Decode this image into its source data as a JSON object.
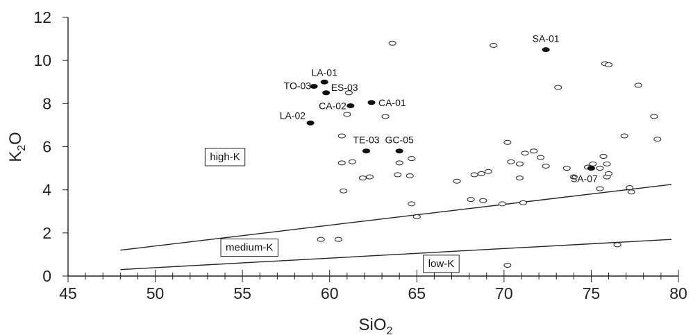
{
  "chart_data": {
    "type": "scatter",
    "xlabel": {
      "main": "SiO",
      "sub": "2"
    },
    "ylabel": {
      "main": "K",
      "sub": "2",
      "tail": "O"
    },
    "xlim": [
      45,
      80
    ],
    "ylim": [
      0,
      12
    ],
    "x_ticks": [
      45,
      50,
      55,
      60,
      65,
      70,
      75,
      80
    ],
    "y_ticks": [
      0,
      2,
      4,
      6,
      8,
      10,
      12
    ],
    "grid": false,
    "boundaries": [
      {
        "name": "high-medium",
        "x": [
          48,
          79.6
        ],
        "y": [
          1.2,
          4.25
        ]
      },
      {
        "name": "medium-low",
        "x": [
          48,
          79.6
        ],
        "y": [
          0.3,
          1.7
        ]
      }
    ],
    "field_labels": [
      {
        "text": "high-K",
        "x": 54.0,
        "y": 5.5
      },
      {
        "text": "medium-K",
        "x": 55.4,
        "y": 1.3
      },
      {
        "text": "low-K",
        "x": 66.4,
        "y": 0.55
      }
    ],
    "labeled_samples": [
      {
        "label": "SA-01",
        "x": 72.4,
        "y": 10.5
      },
      {
        "label": "LA-01",
        "x": 59.7,
        "y": 9.0
      },
      {
        "label": "TO-03",
        "x": 59.1,
        "y": 8.8
      },
      {
        "label": "ES-03",
        "x": 59.8,
        "y": 8.5
      },
      {
        "label": "CA-02",
        "x": 61.2,
        "y": 7.9
      },
      {
        "label": "CA-01",
        "x": 62.4,
        "y": 8.05
      },
      {
        "label": "LA-02",
        "x": 58.9,
        "y": 7.1
      },
      {
        "label": "TE-03",
        "x": 62.1,
        "y": 5.8
      },
      {
        "label": "GC-05",
        "x": 64.0,
        "y": 5.8
      },
      {
        "label": "SA-07",
        "x": 75.0,
        "y": 5.0
      }
    ],
    "other_samples": [
      [
        63.6,
        10.8
      ],
      [
        69.4,
        10.7
      ],
      [
        75.8,
        9.85
      ],
      [
        76.0,
        9.8
      ],
      [
        73.1,
        8.75
      ],
      [
        77.7,
        8.85
      ],
      [
        61.1,
        8.5
      ],
      [
        63.2,
        7.4
      ],
      [
        61.0,
        7.5
      ],
      [
        78.6,
        7.4
      ],
      [
        76.9,
        6.5
      ],
      [
        78.8,
        6.35
      ],
      [
        60.7,
        6.5
      ],
      [
        70.2,
        6.2
      ],
      [
        71.7,
        5.8
      ],
      [
        71.2,
        5.7
      ],
      [
        72.1,
        5.5
      ],
      [
        75.7,
        5.55
      ],
      [
        60.7,
        5.25
      ],
      [
        61.3,
        5.3
      ],
      [
        64.0,
        5.25
      ],
      [
        64.7,
        5.45
      ],
      [
        70.4,
        5.3
      ],
      [
        70.9,
        5.2
      ],
      [
        72.4,
        5.1
      ],
      [
        73.6,
        5.0
      ],
      [
        74.8,
        5.05
      ],
      [
        75.1,
        5.2
      ],
      [
        75.5,
        5.0
      ],
      [
        75.9,
        5.2
      ],
      [
        60.8,
        3.95
      ],
      [
        61.9,
        4.55
      ],
      [
        62.3,
        4.6
      ],
      [
        63.9,
        4.7
      ],
      [
        64.6,
        4.65
      ],
      [
        67.3,
        4.4
      ],
      [
        68.3,
        4.7
      ],
      [
        68.7,
        4.75
      ],
      [
        69.1,
        4.85
      ],
      [
        70.9,
        4.55
      ],
      [
        74.0,
        4.6
      ],
      [
        75.9,
        4.6
      ],
      [
        76.0,
        4.75
      ],
      [
        75.5,
        4.05
      ],
      [
        77.2,
        4.1
      ],
      [
        77.3,
        3.9
      ],
      [
        68.1,
        3.55
      ],
      [
        68.8,
        3.5
      ],
      [
        69.9,
        3.35
      ],
      [
        71.1,
        3.4
      ],
      [
        64.7,
        3.35
      ],
      [
        65.0,
        2.75
      ],
      [
        59.5,
        1.7
      ],
      [
        60.5,
        1.7
      ],
      [
        76.5,
        1.45
      ],
      [
        70.2,
        0.5
      ]
    ]
  }
}
